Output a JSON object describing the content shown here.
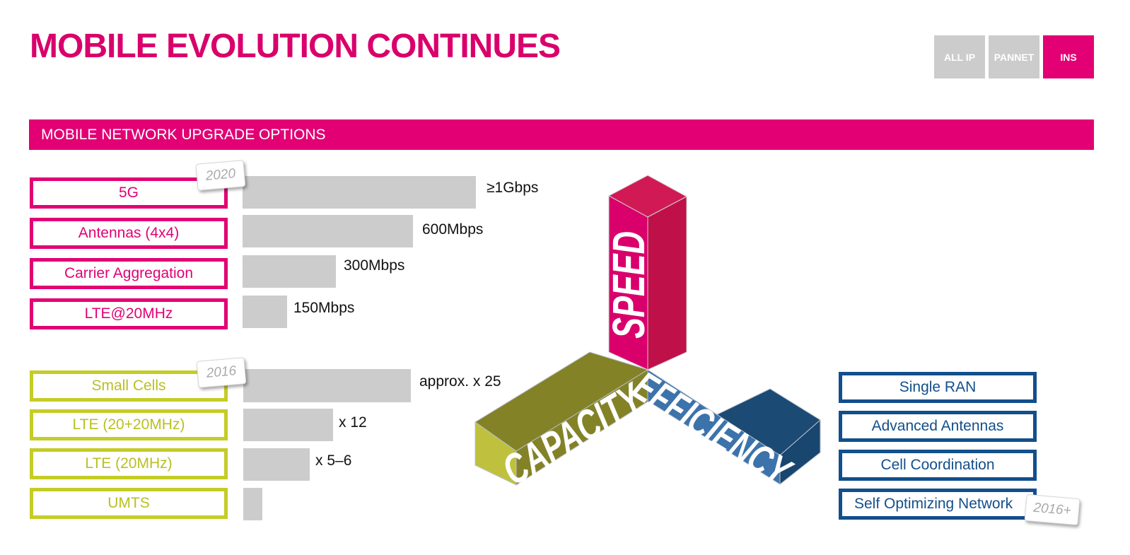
{
  "header": {
    "title": "MOBILE EVOLUTION CONTINUES",
    "tabs": [
      {
        "label": "ALL IP",
        "active": false
      },
      {
        "label": "PANNET",
        "active": false
      },
      {
        "label": "INS",
        "active": true
      }
    ]
  },
  "section": {
    "title": "MOBILE NETWORK UPGRADE OPTIONS"
  },
  "speed_options": {
    "year_tag": "2020",
    "items": [
      {
        "label": "5G",
        "bar_value": "≥1Gbps",
        "bar_fraction": 1.0
      },
      {
        "label": "Antennas (4x4)",
        "bar_value": "600Mbps",
        "bar_fraction": 0.73
      },
      {
        "label": "Carrier Aggregation",
        "bar_value": "300Mbps",
        "bar_fraction": 0.4
      },
      {
        "label": "LTE@20MHz",
        "bar_value": "150Mbps",
        "bar_fraction": 0.19
      }
    ]
  },
  "capacity_options": {
    "year_tag": "2016",
    "items": [
      {
        "label": "Small Cells",
        "bar_value": "approx. x 25",
        "bar_fraction": 0.71
      },
      {
        "label": "LTE (20+20MHz)",
        "bar_value": "x 12",
        "bar_fraction": 0.38
      },
      {
        "label": "LTE (20MHz)",
        "bar_value": "x 5–6",
        "bar_fraction": 0.28
      },
      {
        "label": "UMTS",
        "bar_value": "",
        "bar_fraction": 0.08
      }
    ]
  },
  "efficiency_options": {
    "year_tag": "2016+",
    "items": [
      {
        "label": "Single RAN"
      },
      {
        "label": "Advanced Antennas"
      },
      {
        "label": "Cell Coordination"
      },
      {
        "label": "Self Optimizing Network"
      }
    ]
  },
  "cube": {
    "speed_label": "SPEED",
    "capacity_label": "CAPACITY",
    "efficiency_label": "EFFICIENCY",
    "colors": {
      "speed_front": "#d9006c",
      "speed_side": "#c0104a",
      "speed_top": "#d11a55",
      "capacity_front": "#bfc13e",
      "capacity_top": "#838227",
      "efficiency_front": "#3c73ab",
      "efficiency_top": "#1b4a75",
      "efficiency_side": "#19466f"
    }
  },
  "colors": {
    "magenta": "#e20074",
    "yellow_green": "#c5cc26",
    "blue": "#124f8c",
    "bar_gray": "#cccccc"
  }
}
